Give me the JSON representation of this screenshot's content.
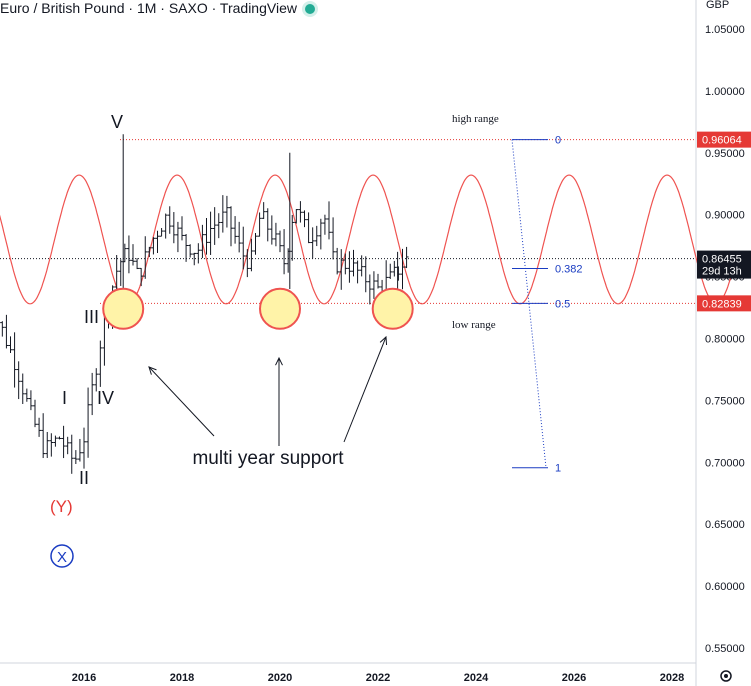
{
  "header": {
    "title": "Euro / British Pound · 1M · SAXO · TradingView",
    "currency": "GBP"
  },
  "chart_data": {
    "type": "line",
    "y_ticks": [
      "1.05000",
      "1.00000",
      "0.95000",
      "0.90000",
      "0.85000",
      "0.80000",
      "0.75000",
      "0.70000",
      "0.65000",
      "0.60000",
      "0.55000"
    ],
    "x_ticks": [
      "2016",
      "2018",
      "2020",
      "2022",
      "2024",
      "2026",
      "2028"
    ],
    "price_labels": [
      {
        "value": "0.96064",
        "style": "red"
      },
      {
        "value": "0.86455",
        "sub": "29d 13h",
        "style": "dark"
      },
      {
        "value": "0.82839",
        "style": "red"
      }
    ],
    "fib_levels": [
      {
        "label": "0",
        "price": 0.96064
      },
      {
        "label": "0.382",
        "price": 0.8565
      },
      {
        "label": "0.5",
        "price": 0.8284
      },
      {
        "label": "1",
        "price": 0.6956
      }
    ],
    "annotations": {
      "high_range": "high range",
      "low_range": "low range",
      "support": "multi year support"
    },
    "wave_labels": [
      "V",
      "III",
      "I",
      "IV",
      "II",
      "(Y)",
      "X"
    ],
    "price_series": {
      "x": [
        2014.0,
        2014.3,
        2014.6,
        2014.9,
        2015.2,
        2015.5,
        2015.8,
        2016.0,
        2016.3,
        2016.5,
        2016.7,
        2016.9,
        2017.1,
        2017.4,
        2017.7,
        2018.0,
        2018.3,
        2018.6,
        2018.9,
        2019.2,
        2019.4,
        2019.6,
        2019.9,
        2020.1,
        2020.3,
        2020.6,
        2020.9,
        2021.1,
        2021.4,
        2021.7,
        2022.0,
        2022.3,
        2022.6
      ],
      "y": [
        0.835,
        0.81,
        0.78,
        0.74,
        0.71,
        0.72,
        0.7,
        0.72,
        0.79,
        0.83,
        0.86,
        0.87,
        0.85,
        0.88,
        0.9,
        0.88,
        0.87,
        0.89,
        0.9,
        0.87,
        0.86,
        0.9,
        0.88,
        0.86,
        0.91,
        0.88,
        0.9,
        0.86,
        0.86,
        0.85,
        0.84,
        0.85,
        0.865
      ]
    },
    "cycle": {
      "center": 0.88,
      "amplitude": 0.052,
      "period_years": 2.0,
      "peak_year": 2015.9
    }
  }
}
